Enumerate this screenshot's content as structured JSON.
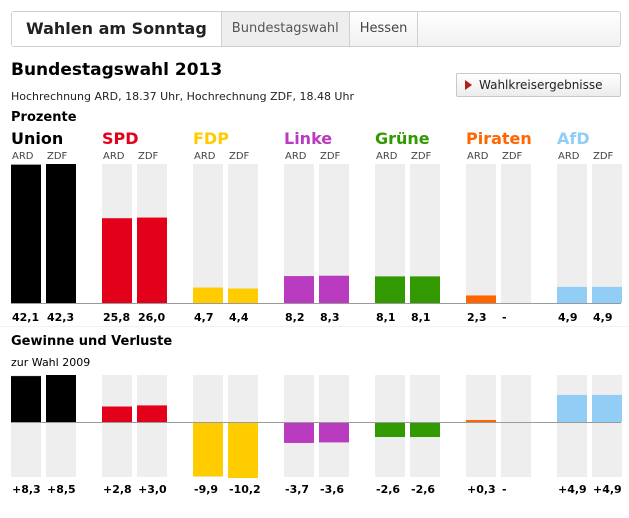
{
  "nav": {
    "home": "Wahlen am Sonntag",
    "tabs": [
      "Bundestagswahl",
      "Hessen"
    ],
    "active_tab": 0
  },
  "page": {
    "title": "Bundestagswahl 2013",
    "subtitle": "Hochrechnung ARD, 18.37 Uhr, Hochrechnung ZDF, 18.48 Uhr",
    "button": "Wahlkreisergebnisse"
  },
  "sections": {
    "percent_label": "Prozente",
    "change_label": "Gewinne und Verluste",
    "change_sub": "zur Wahl 2009"
  },
  "chart_data": [
    {
      "type": "bar",
      "title": "Prozente",
      "categories": [
        "Union",
        "SPD",
        "FDP",
        "Linke",
        "Grüne",
        "Piraten",
        "AfD"
      ],
      "sources": [
        "ARD",
        "ZDF"
      ],
      "colors": [
        "#000000",
        "#e2001a",
        "#ffcc00",
        "#b93cc0",
        "#339900",
        "#ff6600",
        "#91cdf5"
      ],
      "series": [
        {
          "name": "ARD",
          "values": [
            42.1,
            25.8,
            4.7,
            8.2,
            8.1,
            2.3,
            4.9
          ]
        },
        {
          "name": "ZDF",
          "values": [
            42.3,
            26.0,
            4.4,
            8.3,
            8.1,
            null,
            4.9
          ]
        }
      ],
      "labels": [
        [
          "42,1",
          "42,3"
        ],
        [
          "25,8",
          "26,0"
        ],
        [
          "4,7",
          "4,4"
        ],
        [
          "8,2",
          "8,3"
        ],
        [
          "8,1",
          "8,1"
        ],
        [
          "2,3",
          "-"
        ],
        [
          "4,9",
          "4,9"
        ]
      ],
      "ylim": [
        0,
        42.3
      ]
    },
    {
      "type": "bar",
      "title": "Gewinne und Verluste",
      "subtitle": "zur Wahl 2009",
      "categories": [
        "Union",
        "SPD",
        "FDP",
        "Linke",
        "Grüne",
        "Piraten",
        "AfD"
      ],
      "series": [
        {
          "name": "ARD",
          "values": [
            8.3,
            2.8,
            -9.9,
            -3.7,
            -2.6,
            0.3,
            4.9
          ]
        },
        {
          "name": "ZDF",
          "values": [
            8.5,
            3.0,
            -10.2,
            -3.6,
            -2.6,
            null,
            4.9
          ]
        }
      ],
      "labels": [
        [
          "+8,3",
          "+8,5"
        ],
        [
          "+2,8",
          "+3,0"
        ],
        [
          "-9,9",
          "-10,2"
        ],
        [
          "-3,7",
          "-3,6"
        ],
        [
          "-2,6",
          "-2,6"
        ],
        [
          "+0,3",
          "-"
        ],
        [
          "+4,9",
          "+4,9"
        ]
      ],
      "ylim": [
        -10.2,
        8.5
      ]
    }
  ]
}
